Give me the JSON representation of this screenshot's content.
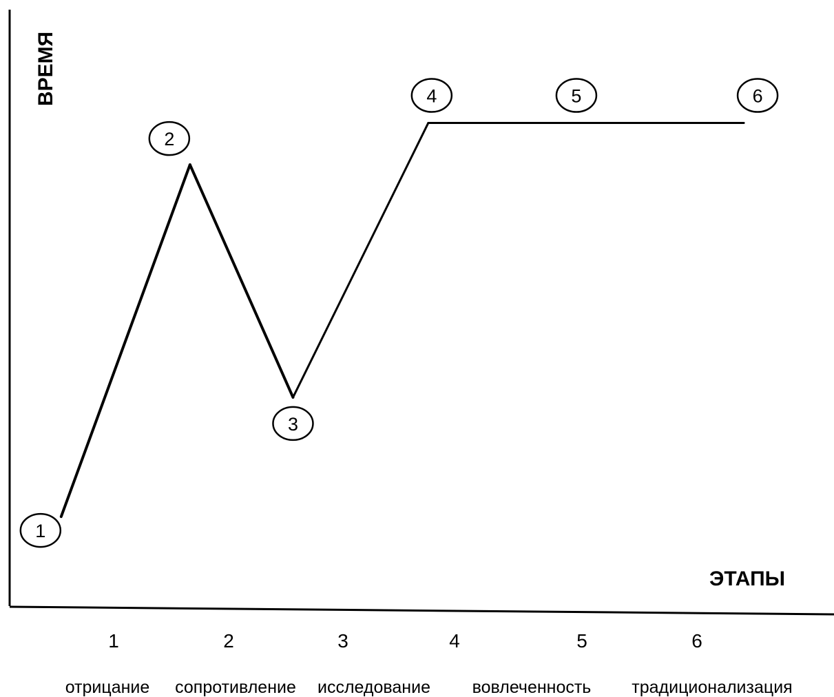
{
  "chart_data": {
    "type": "line",
    "title": "",
    "xlabel": "ЭТАПЫ",
    "ylabel": "ВРЕМЯ",
    "grid": false,
    "legend": "none",
    "xlim": [
      0.6,
      7.0
    ],
    "ylim": [
      0,
      100
    ],
    "categories": [
      "1",
      "2",
      "3",
      "4",
      "5",
      "6"
    ],
    "stage_names": [
      "отрицание",
      "сопротивление",
      "исследование",
      "вовлеченность",
      "традиционализация"
    ],
    "series": [
      {
        "points": [
          {
            "x": 1.0,
            "y": 15,
            "marker": "1"
          },
          {
            "x": 2.0,
            "y": 74,
            "marker": "2"
          },
          {
            "x": 2.8,
            "y": 35,
            "marker": "3"
          },
          {
            "x": 3.85,
            "y": 81,
            "marker": "4"
          },
          {
            "x": 5.0,
            "y": 81,
            "marker": "5"
          },
          {
            "x": 6.3,
            "y": 81,
            "marker": "6"
          }
        ]
      }
    ],
    "colors": {
      "line": "#000000",
      "marker_fill": "#ffffff",
      "axis": "#000000"
    }
  }
}
